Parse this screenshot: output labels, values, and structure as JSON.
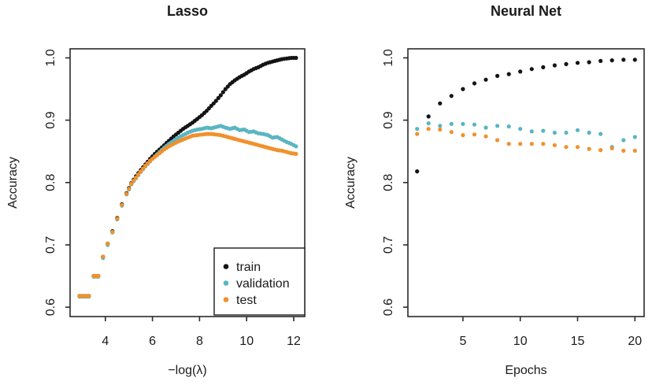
{
  "page": {
    "background": "#ffffff",
    "text_color": "#1a1a1a"
  },
  "colors": {
    "frame": "#2a2a2a",
    "train": "#141414",
    "validation": "#5ab5c2",
    "test": "#f0912d"
  },
  "chart_data": [
    {
      "id": "lasso",
      "type": "scatter",
      "title": "Lasso",
      "xlabel": "−log(λ)",
      "ylabel": "Accuracy",
      "xlim": [
        2.5,
        12.47
      ],
      "ylim": [
        0.585,
        1.0145
      ],
      "xticks": [
        4,
        6,
        8,
        10,
        12
      ],
      "yticks": [
        0.6,
        0.7,
        0.8,
        0.9,
        1.0
      ],
      "ytick_labels": [
        "0.6",
        "0.7",
        "0.8",
        "0.9",
        "1.0"
      ],
      "grid": false,
      "dense": true,
      "legend": {
        "position": "bottom-right",
        "entries": [
          "train",
          "validation",
          "test"
        ]
      },
      "x": [
        2.9,
        3.1,
        3.3,
        3.5,
        3.7,
        3.9,
        4.1,
        4.3,
        4.5,
        4.7,
        4.9,
        5.1,
        5.3,
        5.5,
        5.7,
        5.9,
        6.1,
        6.3,
        6.5,
        6.7,
        6.9,
        7.1,
        7.3,
        7.5,
        7.7,
        7.9,
        8.1,
        8.3,
        8.5,
        8.7,
        8.9,
        9.1,
        9.3,
        9.5,
        9.7,
        9.9,
        10.1,
        10.3,
        10.5,
        10.7,
        10.9,
        11.1,
        11.3,
        11.5,
        11.7,
        11.9,
        12.1
      ],
      "series": [
        {
          "name": "train",
          "color": "#141414",
          "y": [
            0.618,
            0.618,
            0.618,
            0.65,
            0.65,
            0.681,
            0.702,
            0.722,
            0.743,
            0.765,
            0.783,
            0.799,
            0.81,
            0.82,
            0.829,
            0.838,
            0.846,
            0.853,
            0.86,
            0.867,
            0.874,
            0.88,
            0.886,
            0.891,
            0.896,
            0.902,
            0.908,
            0.915,
            0.923,
            0.931,
            0.94,
            0.95,
            0.958,
            0.964,
            0.969,
            0.973,
            0.978,
            0.982,
            0.985,
            0.989,
            0.992,
            0.994,
            0.996,
            0.998,
            0.999,
            1.0,
            1.0
          ]
        },
        {
          "name": "validation",
          "color": "#5ab5c2",
          "y": [
            0.617,
            0.617,
            0.617,
            0.649,
            0.649,
            0.679,
            0.7,
            0.72,
            0.741,
            0.763,
            0.781,
            0.797,
            0.807,
            0.817,
            0.826,
            0.834,
            0.842,
            0.849,
            0.856,
            0.862,
            0.867,
            0.872,
            0.876,
            0.88,
            0.883,
            0.885,
            0.886,
            0.888,
            0.887,
            0.889,
            0.891,
            0.888,
            0.886,
            0.888,
            0.884,
            0.885,
            0.881,
            0.882,
            0.879,
            0.878,
            0.876,
            0.872,
            0.873,
            0.869,
            0.865,
            0.862,
            0.858
          ]
        },
        {
          "name": "test",
          "color": "#f0912d",
          "y": [
            0.618,
            0.618,
            0.618,
            0.65,
            0.65,
            0.681,
            0.702,
            0.721,
            0.742,
            0.764,
            0.782,
            0.798,
            0.808,
            0.818,
            0.827,
            0.835,
            0.841,
            0.847,
            0.853,
            0.858,
            0.862,
            0.866,
            0.869,
            0.872,
            0.875,
            0.876,
            0.877,
            0.878,
            0.878,
            0.877,
            0.876,
            0.874,
            0.872,
            0.87,
            0.868,
            0.866,
            0.864,
            0.862,
            0.86,
            0.858,
            0.856,
            0.854,
            0.852,
            0.851,
            0.849,
            0.847,
            0.846
          ]
        }
      ]
    },
    {
      "id": "neural-net",
      "type": "scatter",
      "title": "Neural Net",
      "xlabel": "Epochs",
      "ylabel": "Accuracy",
      "xlim": [
        0.2,
        20.8
      ],
      "ylim": [
        0.585,
        1.0145
      ],
      "xticks": [
        5,
        10,
        15,
        20
      ],
      "yticks": [
        0.6,
        0.7,
        0.8,
        0.9,
        1.0
      ],
      "ytick_labels": [
        "0.6",
        "0.7",
        "0.8",
        "0.9",
        "1.0"
      ],
      "grid": false,
      "dense": false,
      "x": [
        1,
        2,
        3,
        4,
        5,
        6,
        7,
        8,
        9,
        10,
        11,
        12,
        13,
        14,
        15,
        16,
        17,
        18,
        19,
        20
      ],
      "series": [
        {
          "name": "train",
          "color": "#141414",
          "y": [
            0.818,
            0.906,
            0.927,
            0.939,
            0.95,
            0.959,
            0.965,
            0.971,
            0.974,
            0.978,
            0.982,
            0.985,
            0.988,
            0.99,
            0.992,
            0.993,
            0.995,
            0.996,
            0.997,
            0.997
          ]
        },
        {
          "name": "validation",
          "color": "#5ab5c2",
          "y": [
            0.886,
            0.895,
            0.891,
            0.894,
            0.894,
            0.893,
            0.888,
            0.891,
            0.89,
            0.886,
            0.882,
            0.883,
            0.88,
            0.88,
            0.884,
            0.88,
            0.878,
            0.857,
            0.868,
            0.873
          ]
        },
        {
          "name": "test",
          "color": "#f0912d",
          "y": [
            0.878,
            0.886,
            0.885,
            0.881,
            0.876,
            0.877,
            0.874,
            0.868,
            0.862,
            0.862,
            0.862,
            0.862,
            0.86,
            0.857,
            0.857,
            0.854,
            0.852,
            0.855,
            0.851,
            0.851
          ]
        }
      ]
    }
  ]
}
